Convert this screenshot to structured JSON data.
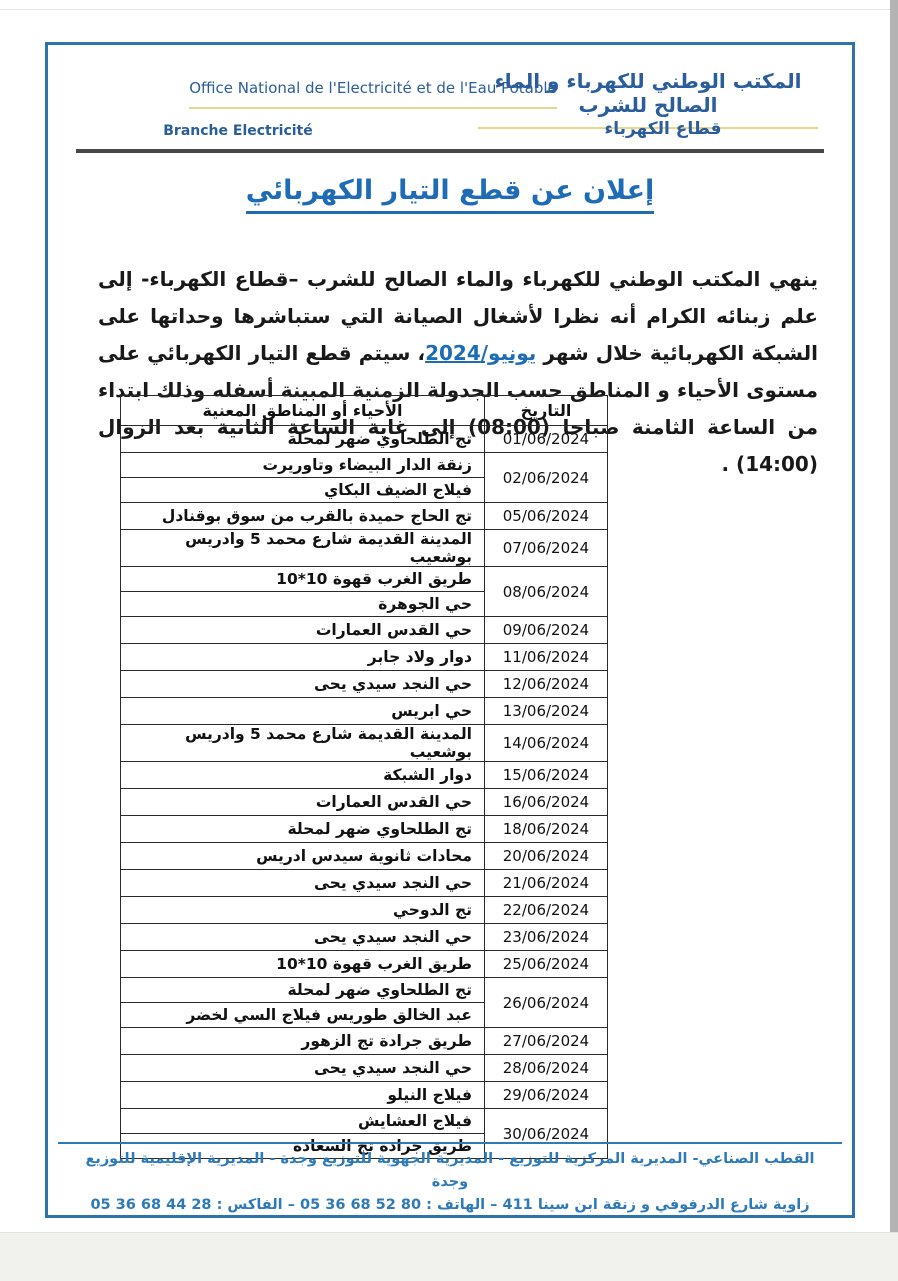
{
  "header": {
    "org_fr": "Office National de l'Electricité et de l'Eau Potable",
    "branch_fr": "Branche Electricité",
    "org_ar": "المكتب الوطني للكهرباء و الماء الصالح للشرب",
    "branch_ar": "قطاع الكهرباء"
  },
  "title": "إعلان عن قطع التيار الكهربائي",
  "body_text": {
    "before_month": "ينهي المكتب الوطني للكهرباء والماء الصالح للشرب –قطاع الكهرباء- إلى علم زبنائه الكرام أنه نظرا لأشغال الصيانة التي ستباشرها وحداتها على الشبكة الكهربائية خلال شهر ",
    "month_highlight": "يونيو/2024",
    "after_month": "، سيتم قطع التيار الكهربائي على مستوى الأحياء و المناطق حسب الجدولة الزمنية المبينة أسفله وذلك ابتداء من الساعة الثامنة صباحا (08:00) إلى غاية الساعة الثانية بعد الزوال (14:00) ."
  },
  "table": {
    "headers": {
      "date": "التاريخ",
      "areas": "الأحياء أو المناطق المعنية"
    },
    "rows": [
      {
        "date": "01/06/2024",
        "areas": [
          "تج الطلحاوي ضهر لمحلة"
        ]
      },
      {
        "date": "02/06/2024",
        "areas": [
          "زنقة الدار البيضاء وتاوريرت",
          "فيلاج الضيف البكاي"
        ]
      },
      {
        "date": "05/06/2024",
        "areas": [
          "تج الحاج حميدة بالقرب من سوق بوقنادل"
        ]
      },
      {
        "date": "07/06/2024",
        "areas": [
          "المدينة القديمة شارع محمد 5 وادريس بوشعيب"
        ]
      },
      {
        "date": "08/06/2024",
        "areas": [
          "طريق الغرب قهوة 10*10",
          "حي الجوهرة"
        ]
      },
      {
        "date": "09/06/2024",
        "areas": [
          "حي القدس العمارات"
        ]
      },
      {
        "date": "11/06/2024",
        "areas": [
          "دوار ولاد جابر"
        ]
      },
      {
        "date": "12/06/2024",
        "areas": [
          "حي النجد سيدي يحى"
        ]
      },
      {
        "date": "13/06/2024",
        "areas": [
          "حي ابريس"
        ]
      },
      {
        "date": "14/06/2024",
        "areas": [
          "المدينة القديمة شارع محمد 5 وادريس بوشعيب"
        ]
      },
      {
        "date": "15/06/2024",
        "areas": [
          "دوار الشبكة"
        ]
      },
      {
        "date": "16/06/2024",
        "areas": [
          "حي القدس العمارات"
        ]
      },
      {
        "date": "18/06/2024",
        "areas": [
          "تج الطلحاوي ضهر لمحلة"
        ]
      },
      {
        "date": "20/06/2024",
        "areas": [
          "محادات ثانوية سيدس ادريس"
        ]
      },
      {
        "date": "21/06/2024",
        "areas": [
          "حي النجد سيدي يحى"
        ]
      },
      {
        "date": "22/06/2024",
        "areas": [
          "تج الدوحي"
        ]
      },
      {
        "date": "23/06/2024",
        "areas": [
          "حي النجد سيدي يحى"
        ]
      },
      {
        "date": "25/06/2024",
        "areas": [
          "طريق الغرب قهوة 10*10"
        ]
      },
      {
        "date": "26/06/2024",
        "areas": [
          "تج الطلحاوي ضهر لمحلة",
          "عبد الخالق طوريس فيلاج السي لخضر"
        ]
      },
      {
        "date": "27/06/2024",
        "areas": [
          "طريق جرادة تج الزهور"
        ]
      },
      {
        "date": "28/06/2024",
        "areas": [
          "حي النجد سيدي يحى"
        ]
      },
      {
        "date": "29/06/2024",
        "areas": [
          "فيلاج النيلو"
        ]
      },
      {
        "date": "30/06/2024",
        "areas": [
          "فيلاج العشايش",
          "طريق جرادة تج السعادة"
        ]
      }
    ]
  },
  "footer": {
    "line1": "القطب الصناعي- المديرية المركزية للتوزيع - المديرية الجهوية للتوزيع وجدة - المديرية الإقليمية للتوزيع وجدة",
    "line2_prefix": "زاوية شارع الدرفوفي و زنقة ابن سينا 411 – الهاتف : ",
    "phone": "05 36 68 52 80",
    "line2_mid": " – الفاكس :  ",
    "fax": "05 36 68 44 28"
  },
  "colors": {
    "header_blue": "#2a5d9b",
    "title_blue": "#1e6cb5",
    "footer_blue": "#2e79b8",
    "gold_underline": "#e7d68e",
    "page_border_blue": "#2b74ad",
    "header_rule_dark": "#474747",
    "table_border": "#2a2a2a",
    "body_text": "#191919"
  }
}
